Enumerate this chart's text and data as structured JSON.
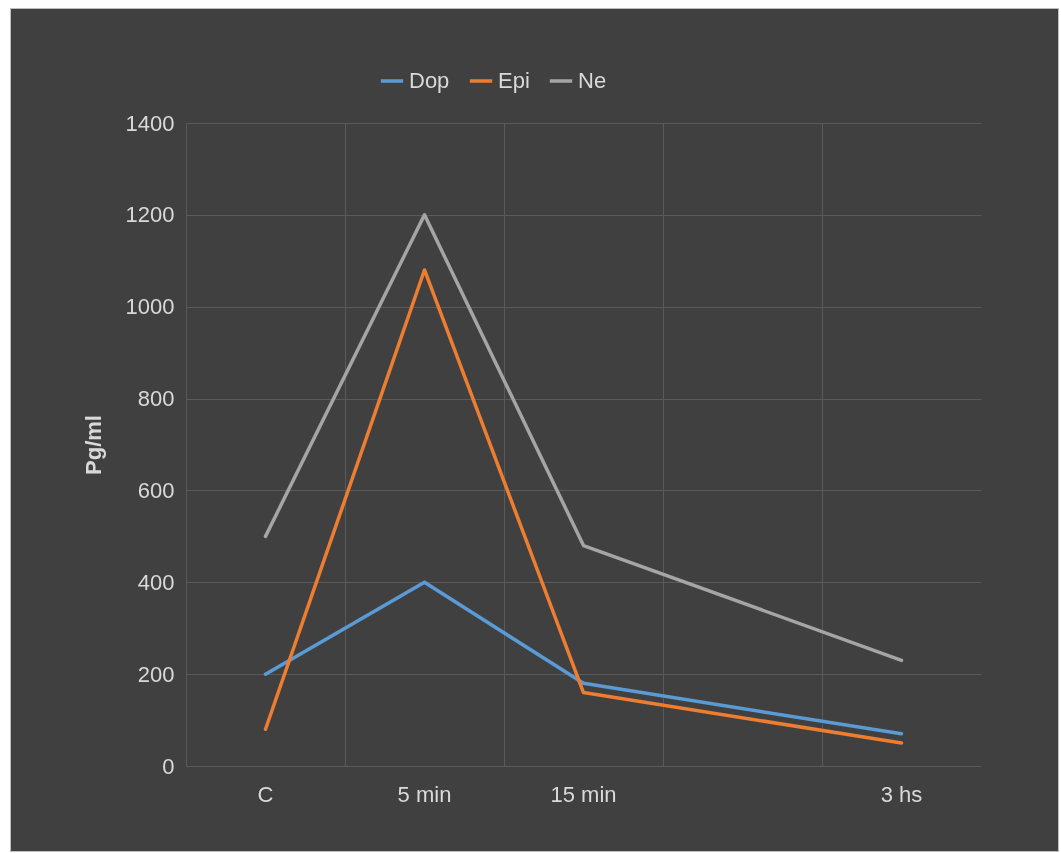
{
  "chart_data": {
    "type": "line",
    "ylabel": "Pg/ml",
    "categories": [
      "C",
      "5 min",
      "15 min",
      null,
      "3 hs"
    ],
    "series": [
      {
        "name": "Dop",
        "color": "#5b9bd5",
        "values": [
          200,
          400,
          180,
          null,
          70
        ]
      },
      {
        "name": "Epi",
        "color": "#ed7d31",
        "values": [
          80,
          1080,
          160,
          null,
          50
        ]
      },
      {
        "name": "Ne",
        "color": "#a5a5a5",
        "values": [
          500,
          1200,
          480,
          null,
          230
        ]
      }
    ],
    "ylim": [
      0,
      1400
    ],
    "yticks": [
      0,
      200,
      400,
      600,
      800,
      1000,
      1200,
      1400
    ],
    "grid": true,
    "legend": "top"
  }
}
